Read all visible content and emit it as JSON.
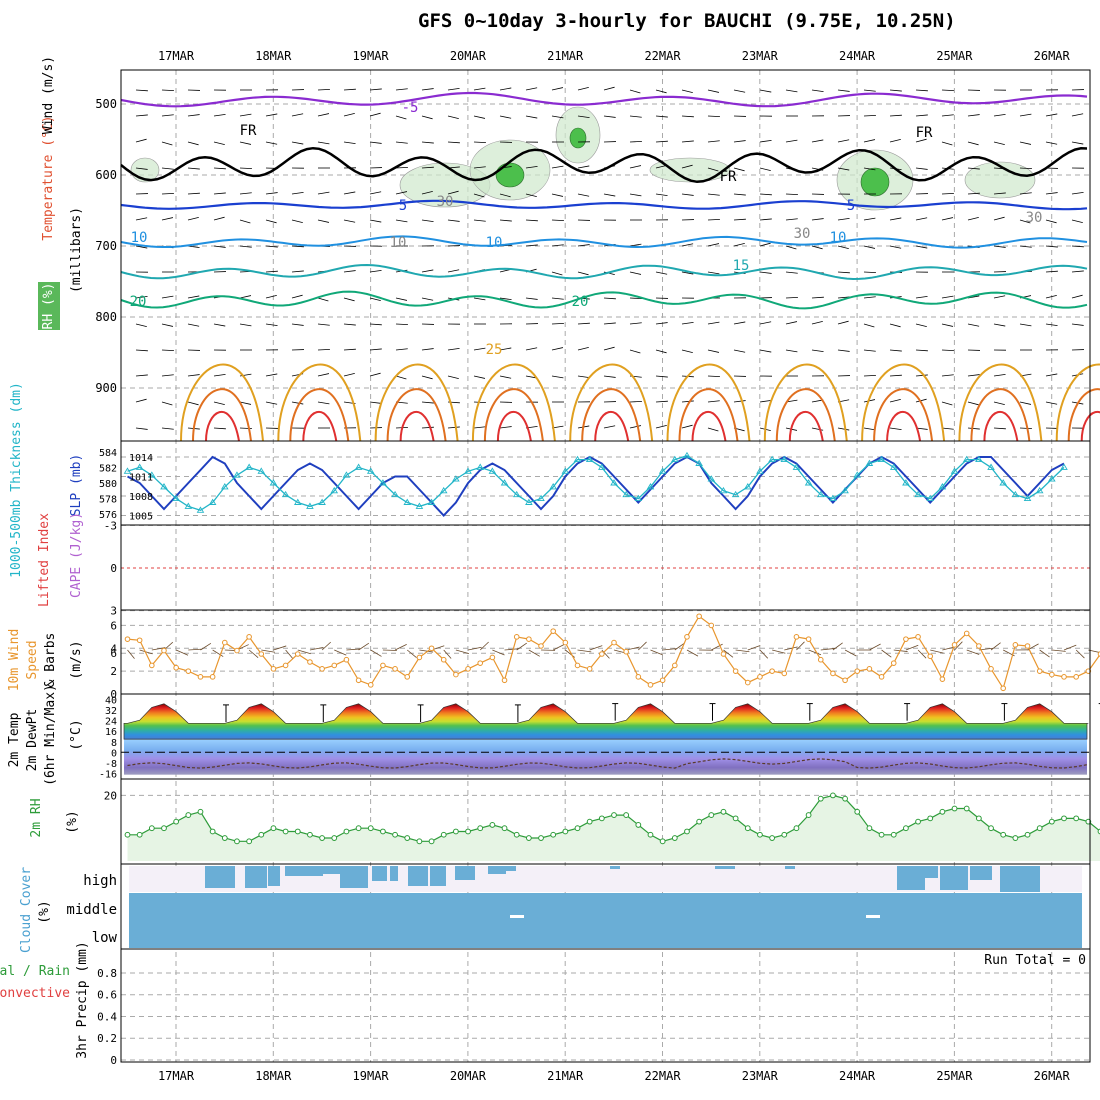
{
  "title": "GFS 0~10day 3-hourly for BAUCHI (9.75E, 10.25N)",
  "dates": [
    "17MAR",
    "18MAR",
    "19MAR",
    "20MAR",
    "21MAR",
    "22MAR",
    "23MAR",
    "24MAR",
    "25MAR",
    "26MAR"
  ],
  "colors": {
    "grid": "#aaaaaa",
    "slp": "#1f3fbf",
    "thickness": "#22b5c8",
    "wind10m": "#e8962e",
    "rh2m": "#2e9c3a",
    "cloud": "#6aaed6",
    "li_zero": "#e04040"
  },
  "panels": {
    "upper": {
      "ylabel_wind": "Wind (m/s)",
      "ylabel_temp": "Temperature (°C)",
      "ylabel_rh": "RH (%)",
      "ylabel_units": "(millibars)",
      "yticks": [
        "500",
        "600",
        "700",
        "800",
        "900"
      ],
      "contour_labels": [
        "-5",
        "FR",
        "FR",
        "FR",
        "5",
        "5",
        "10",
        "10",
        "10",
        "15",
        "20",
        "20",
        "25",
        "30",
        "30",
        "30",
        "10"
      ]
    },
    "slp": {
      "ylabel_left": "1000-500mb Thickness (dm)",
      "ylabel_right": "SLP (mb)",
      "left_ticks": [
        "584",
        "582",
        "580",
        "578",
        "576"
      ],
      "right_ticks": [
        "1014",
        "1011",
        "1008",
        "1005"
      ]
    },
    "cape": {
      "ylabel_li": "Lifted Index",
      "ylabel_cape": "CAPE (J/kg)",
      "yticks": [
        "-3",
        "0",
        "3",
        "6"
      ]
    },
    "wind10m": {
      "ylabel_a": "10m Wind",
      "ylabel_b": "Speed",
      "ylabel_c": "& Barbs",
      "ylabel_units": "(m/s)",
      "yticks": [
        "6",
        "4",
        "2",
        "0"
      ]
    },
    "temp2m": {
      "ylabel_a": "2m Temp",
      "ylabel_b": "2m DewPt",
      "ylabel_c": "(6hr Min/Max)",
      "ylabel_units": "(°C)",
      "yticks": [
        "40",
        "32",
        "24",
        "16",
        "8",
        "0",
        "-8",
        "-16"
      ]
    },
    "rh2m": {
      "ylabel": "2m RH",
      "ylabel_units": "(%)",
      "yticks": [
        "20"
      ]
    },
    "cloud": {
      "ylabel": "Cloud Cover",
      "ylabel_units": "(%)",
      "levels": [
        "high",
        "middle",
        "low"
      ]
    },
    "precip": {
      "ylabel_a": "Total / Rain",
      "ylabel_b": "Convective",
      "ylabel_c": "3hr Precip (mm)",
      "yticks": [
        "0.8",
        "0.6",
        "0.4",
        "0.2",
        "0"
      ],
      "run_total": "Run Total = 0"
    }
  },
  "chart_data": {
    "type": "line",
    "x_start": "16MAR 12Z",
    "x_step_hours": 3,
    "series": [
      {
        "name": "SLP (mb)",
        "values": [
          1011,
          1010,
          1008,
          1006,
          1008,
          1010,
          1012,
          1014,
          1013,
          1010,
          1008,
          1006,
          1008,
          1010,
          1012,
          1013,
          1012,
          1010,
          1008,
          1006,
          1008,
          1010,
          1011,
          1011,
          1009,
          1007,
          1005,
          1007,
          1010,
          1012,
          1013,
          1012,
          1010,
          1008,
          1006,
          1008,
          1011,
          1013,
          1014,
          1013,
          1011,
          1009,
          1007,
          1009,
          1011,
          1013,
          1014,
          1013,
          1010,
          1008,
          1006,
          1008,
          1011,
          1013,
          1014,
          1013,
          1011,
          1009,
          1007,
          1009,
          1011,
          1013,
          1014,
          1013,
          1011,
          1009,
          1007,
          1009,
          1011,
          1013,
          1014,
          1014,
          1012,
          1010,
          1008,
          1010,
          1012,
          1013
        ]
      },
      {
        "name": "1000-500mb Thickness (dm)",
        "values": [
          581.5,
          582,
          581,
          579.5,
          578,
          577,
          576.5,
          577.5,
          579.5,
          581,
          582,
          581.5,
          580,
          578.5,
          577.5,
          577,
          577.5,
          579,
          581,
          582,
          581.5,
          580,
          578.5,
          577.5,
          577,
          577.5,
          579,
          580.5,
          581.5,
          582,
          581.5,
          580,
          578.5,
          577.5,
          578,
          579.5,
          581.5,
          583,
          583,
          582,
          580,
          578.5,
          578,
          579.5,
          581.5,
          583,
          583.5,
          582.5,
          580.5,
          579,
          578.5,
          579.5,
          581.5,
          583,
          583,
          582,
          580,
          578.5,
          578,
          579,
          581,
          582.5,
          583,
          582,
          580,
          578.5,
          578,
          579.5,
          581.5,
          583,
          583,
          582,
          580,
          578.5,
          578,
          579,
          580.5,
          582
        ]
      },
      {
        "name": "10m Wind Speed (m/s)",
        "values": [
          4.8,
          4.7,
          2.5,
          3.8,
          2.3,
          2,
          1.5,
          1.5,
          4.5,
          3.8,
          5,
          3.5,
          2.2,
          2.5,
          3.5,
          2.8,
          2.2,
          2.5,
          3,
          1.2,
          0.8,
          2.5,
          2.2,
          1.5,
          3.2,
          4,
          3,
          1.7,
          2.2,
          2.7,
          3.2,
          1.2,
          5,
          4.8,
          4.2,
          5.5,
          4.5,
          2.5,
          2.2,
          3.5,
          4.5,
          3.7,
          1.5,
          0.8,
          1.2,
          2.5,
          5,
          6.8,
          6,
          3.5,
          2,
          1,
          1.5,
          2,
          1.8,
          5,
          4.8,
          3,
          1.8,
          1.2,
          2,
          2.2,
          1.5,
          2.7,
          4.8,
          5,
          3.3,
          1.3,
          4.3,
          5.3,
          4.2,
          2.2,
          0.5,
          4.3,
          4.2,
          2,
          1.7,
          1.5,
          1.5,
          2,
          3.5,
          4.5,
          3.5,
          2,
          1.7,
          1.5
        ]
      },
      {
        "name": "2m RH (%)",
        "values": [
          8,
          8,
          10,
          10,
          12,
          14,
          15,
          9,
          7,
          6,
          6,
          8,
          10,
          9,
          9,
          8,
          7,
          7,
          9,
          10,
          10,
          9,
          8,
          7,
          6,
          6,
          8,
          9,
          9,
          10,
          11,
          10,
          8,
          7,
          7,
          8,
          9,
          10,
          12,
          13,
          14,
          14,
          11,
          8,
          6,
          7,
          9,
          12,
          14,
          15,
          13,
          10,
          8,
          7,
          8,
          10,
          14,
          19,
          20,
          19,
          15,
          10,
          8,
          8,
          10,
          12,
          13,
          15,
          16,
          16,
          13,
          10,
          8,
          7,
          8,
          10,
          12,
          13,
          13,
          12,
          9,
          7,
          7,
          9,
          11,
          12,
          12,
          11
        ]
      },
      {
        "name": "3hr Precip (mm)",
        "values": [
          0,
          0,
          0,
          0,
          0,
          0,
          0,
          0,
          0,
          0,
          0,
          0,
          0,
          0,
          0,
          0,
          0,
          0,
          0,
          0,
          0,
          0,
          0,
          0,
          0,
          0,
          0,
          0,
          0,
          0,
          0,
          0,
          0,
          0,
          0,
          0,
          0,
          0,
          0,
          0,
          0,
          0,
          0,
          0,
          0,
          0,
          0,
          0,
          0,
          0,
          0,
          0,
          0,
          0,
          0,
          0,
          0,
          0,
          0,
          0,
          0,
          0,
          0,
          0,
          0,
          0,
          0,
          0,
          0,
          0,
          0,
          0,
          0,
          0,
          0,
          0,
          0,
          0,
          0
        ]
      }
    ],
    "temp2m_daily_max": [
      36,
      36,
      36,
      36,
      37,
      37,
      37,
      37,
      37,
      37
    ],
    "temp2m_daily_min": [
      22,
      22,
      22,
      22,
      22,
      22,
      22,
      22,
      22,
      22
    ],
    "ylim_slp": [
      1004,
      1016
    ],
    "ylim_thickness": [
      575,
      585
    ],
    "ylim_wind10m": [
      0,
      7
    ],
    "ylim_temp2m": [
      -18,
      42
    ],
    "ylim_precip": [
      0,
      1
    ],
    "ylim_rh2m": [
      0,
      25
    ]
  }
}
